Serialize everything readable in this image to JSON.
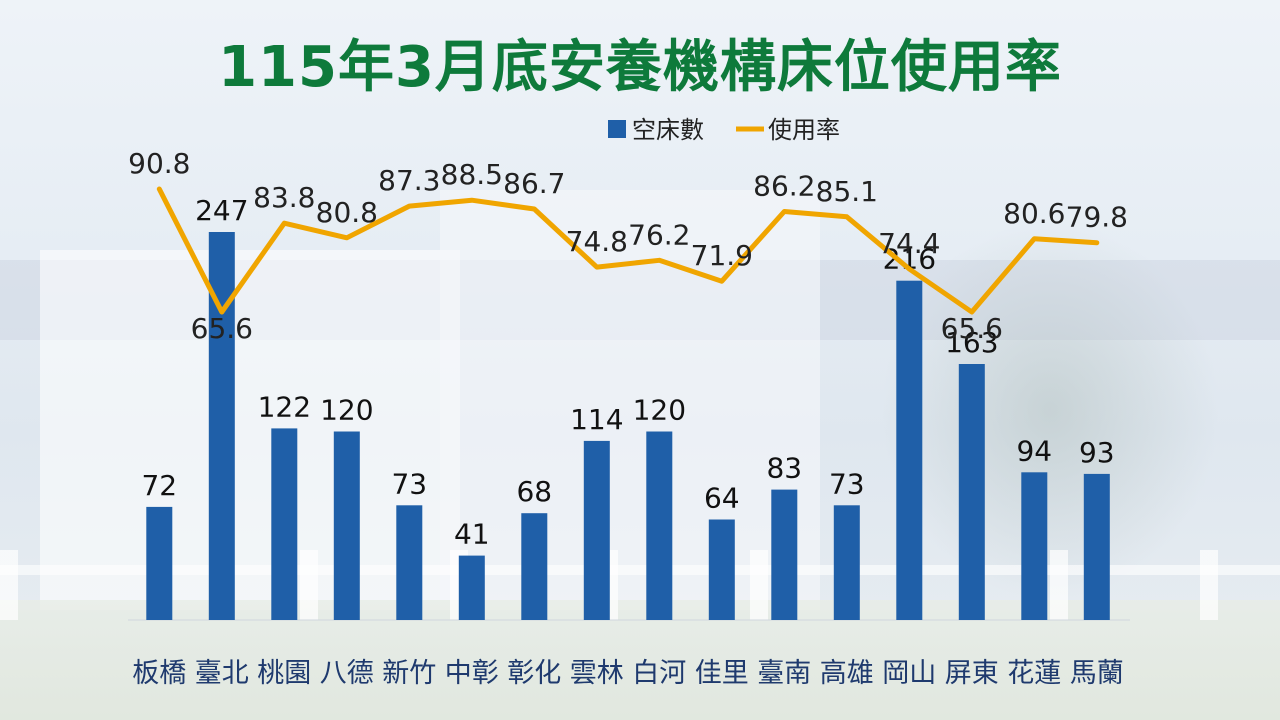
{
  "title": "115年3月底安養機構床位使用率",
  "chart_data": {
    "type": "bar",
    "categories": [
      "板橋",
      "臺北",
      "桃園",
      "八德",
      "新竹",
      "中彰",
      "彰化",
      "雲林",
      "白河",
      "佳里",
      "臺南",
      "高雄",
      "岡山",
      "屏東",
      "花蓮",
      "馬蘭"
    ],
    "series": [
      {
        "name": "空床數",
        "type": "bar",
        "color": "#1f5fa8",
        "values": [
          72,
          247,
          122,
          120,
          73,
          41,
          68,
          114,
          120,
          64,
          83,
          73,
          216,
          163,
          94,
          93
        ]
      },
      {
        "name": "使用率",
        "type": "line",
        "color": "#f0a500",
        "values": [
          90.8,
          65.6,
          83.8,
          80.8,
          87.3,
          88.5,
          86.7,
          74.8,
          76.2,
          71.9,
          86.2,
          85.1,
          74.4,
          65.6,
          80.6,
          79.8
        ]
      }
    ],
    "legend": "top-center",
    "grid": false
  }
}
